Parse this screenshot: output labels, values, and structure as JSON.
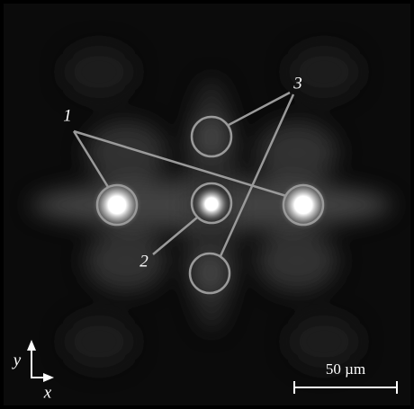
{
  "image": {
    "labels": [
      "1",
      "2",
      "3"
    ],
    "axes": {
      "y": "y",
      "x": "x"
    },
    "scale_bar": "50 µm"
  }
}
